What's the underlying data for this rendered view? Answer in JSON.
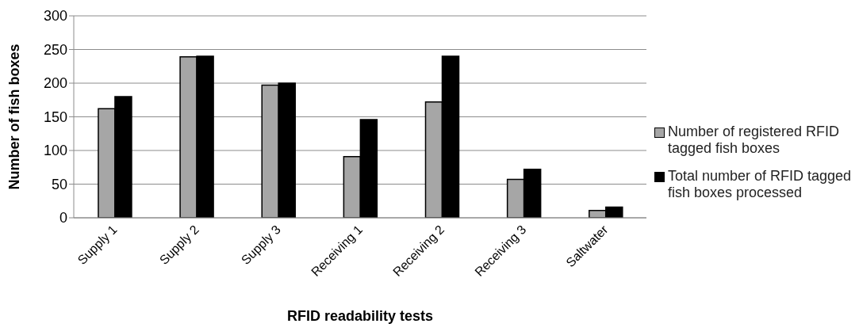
{
  "chart_data": {
    "type": "bar",
    "xlabel": "RFID readability tests",
    "ylabel": "Number of fish boxes",
    "categories": [
      "Supply 1",
      "Supply 2",
      "Supply 3",
      "Receiving 1",
      "Receiving 2",
      "Receiving 3",
      "Saltwater"
    ],
    "series": [
      {
        "name": "Number of registered RFID tagged fish boxes",
        "color": "#a6a6a6",
        "values": [
          162,
          239,
          197,
          91,
          172,
          57,
          11
        ]
      },
      {
        "name": "Total number of RFID tagged fish boxes processed",
        "color": "#000000",
        "values": [
          180,
          240,
          200,
          146,
          240,
          72,
          16
        ]
      }
    ],
    "ylim": [
      0,
      300
    ],
    "yticks": [
      0,
      50,
      100,
      150,
      200,
      250,
      300
    ],
    "grid": "y",
    "legend": "right"
  }
}
